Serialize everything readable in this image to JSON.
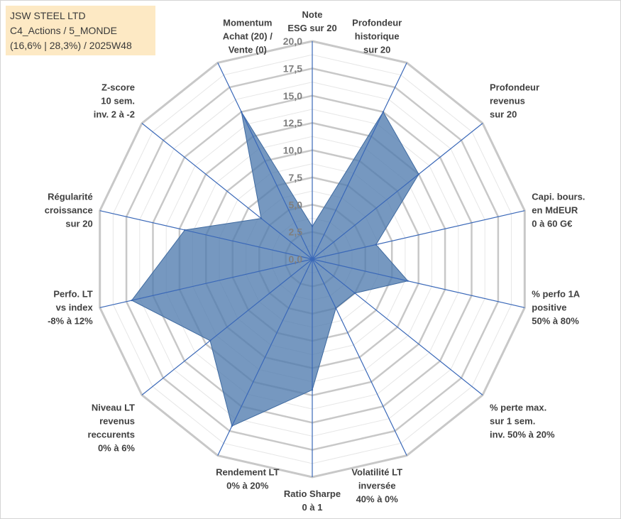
{
  "info_box": {
    "line1": "JSW STEEL LTD",
    "line2": "C4_Actions / 5_MONDE",
    "line3": "(16,6% | 28,3%) / 2025W48"
  },
  "chart_data": {
    "type": "radar",
    "title": "JSW STEEL LTD",
    "rmin": 0,
    "rmax": 20,
    "tick_step": 2.5,
    "tick_labels": [
      "0,0",
      "2,5",
      "5,0",
      "7,5",
      "10,0",
      "12,5",
      "15,0",
      "17,5",
      "20,0"
    ],
    "axes": [
      [
        "Note",
        "ESG sur 20"
      ],
      [
        "Profondeur",
        "historique",
        "sur 20"
      ],
      [
        "Profondeur",
        "revenus",
        "sur 20"
      ],
      [
        "Capi. bours.",
        "en MdEUR",
        "0 à 60 G€"
      ],
      [
        "% perfo 1A",
        "positive",
        "50% à 80%"
      ],
      [
        "% perte max.",
        "sur 1 sem.",
        "inv. 50% à 20%"
      ],
      [
        "Volatilité LT",
        "inversée",
        "40% à 0%"
      ],
      [
        "Ratio Sharpe",
        "0 à 1"
      ],
      [
        "Rendement LT",
        "0% à 20%"
      ],
      [
        "Niveau LT",
        "revenus",
        "reccurents",
        "0% à 6%"
      ],
      [
        "Perfo. LT",
        "vs index",
        "-8% à 12%"
      ],
      [
        "Régularité",
        "croissance",
        "sur 20"
      ],
      [
        "Z-score",
        "10 sem.",
        "inv. 2 à -2"
      ],
      [
        "Momentum",
        "Achat (20) /",
        "Vente (0)"
      ]
    ],
    "series": [
      {
        "name": "JSW STEEL LTD",
        "color": "#4f7bae",
        "values": [
          3.0,
          15.0,
          12.5,
          6.0,
          9.0,
          5.0,
          5.0,
          12.0,
          17.0,
          12.0,
          17.0,
          12.0,
          6.0,
          15.0
        ]
      }
    ],
    "grid_color": "#c8c8c8",
    "spoke_color": "#3a68b8"
  }
}
